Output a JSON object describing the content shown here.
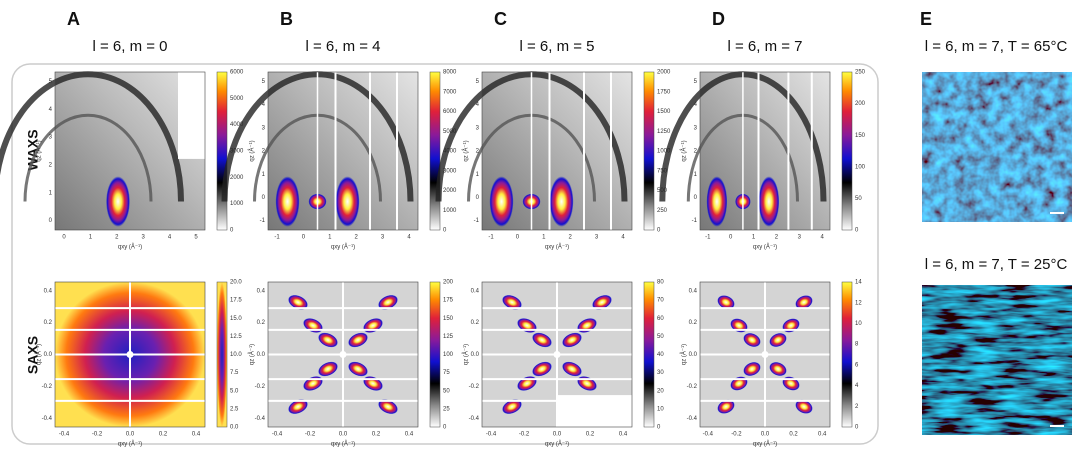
{
  "row_labels": [
    "WAXS",
    "SAXS"
  ],
  "axis_labels": {
    "waxs_x": "qxy (Å⁻¹)",
    "waxs_y": "qz (Å⁻¹)",
    "saxs_x": "qxy (Å⁻¹)",
    "saxs_y": "qz (Å⁻¹)"
  },
  "panels": [
    {
      "letter": "A",
      "title": "l = 6, m = 0",
      "waxs": {
        "xticks": [
          "0",
          "1",
          "2",
          "3",
          "4",
          "5"
        ],
        "yticks": [
          "5",
          "4",
          "3",
          "2",
          "1",
          "0"
        ],
        "colorbar": [
          "6000",
          "5000",
          "4000",
          "3000",
          "2000",
          "1000",
          "0"
        ]
      },
      "saxs": {
        "xticks": [
          "-0.4",
          "-0.2",
          "0.0",
          "0.2",
          "0.4"
        ],
        "yticks": [
          "0.4",
          "0.2",
          "0.0",
          "-0.2",
          "-0.4"
        ],
        "colorbar": [
          "20.0",
          "17.5",
          "15.0",
          "12.5",
          "10.0",
          "7.5",
          "5.0",
          "2.5",
          "0.0"
        ]
      }
    },
    {
      "letter": "B",
      "title": "l = 6, m = 4",
      "waxs": {
        "xticks": [
          "-1",
          "0",
          "1",
          "2",
          "3",
          "4"
        ],
        "yticks": [
          "5",
          "4",
          "3",
          "2",
          "1",
          "0",
          "-1"
        ],
        "colorbar": [
          "8000",
          "7000",
          "6000",
          "5000",
          "4000",
          "3000",
          "2000",
          "1000",
          "0"
        ]
      },
      "saxs": {
        "xticks": [
          "-0.4",
          "-0.2",
          "0.0",
          "0.2",
          "0.4"
        ],
        "yticks": [
          "0.4",
          "0.2",
          "0.0",
          "-0.2",
          "-0.4"
        ],
        "colorbar": [
          "200",
          "175",
          "150",
          "125",
          "100",
          "75",
          "50",
          "25",
          "0"
        ]
      }
    },
    {
      "letter": "C",
      "title": "l = 6, m = 5",
      "waxs": {
        "xticks": [
          "-1",
          "0",
          "1",
          "2",
          "3",
          "4"
        ],
        "yticks": [
          "5",
          "4",
          "3",
          "2",
          "1",
          "0",
          "-1"
        ],
        "colorbar": [
          "2000",
          "1750",
          "1500",
          "1250",
          "1000",
          "750",
          "500",
          "250",
          "0"
        ]
      },
      "saxs": {
        "xticks": [
          "-0.4",
          "-0.2",
          "0.0",
          "0.2",
          "0.4"
        ],
        "yticks": [
          "0.4",
          "0.2",
          "0.0",
          "-0.2",
          "-0.4"
        ],
        "colorbar": [
          "80",
          "70",
          "60",
          "50",
          "40",
          "30",
          "20",
          "10",
          "0"
        ]
      }
    },
    {
      "letter": "D",
      "title": "l = 6, m = 7",
      "waxs": {
        "xticks": [
          "-1",
          "0",
          "1",
          "2",
          "3",
          "4"
        ],
        "yticks": [
          "5",
          "4",
          "3",
          "2",
          "1",
          "0",
          "-1"
        ],
        "colorbar": [
          "250",
          "200",
          "150",
          "100",
          "50",
          "0"
        ]
      },
      "saxs": {
        "xticks": [
          "-0.4",
          "-0.2",
          "0.0",
          "0.2",
          "0.4"
        ],
        "yticks": [
          "0.4",
          "0.2",
          "0.0",
          "-0.2",
          "-0.4"
        ],
        "colorbar": [
          "14",
          "12",
          "10",
          "8",
          "6",
          "4",
          "2",
          "0"
        ]
      }
    }
  ],
  "panel_e": {
    "letter": "E",
    "titles": [
      "l = 6, m = 7, T = 65°C",
      "l = 6, m = 7, T = 25°C"
    ]
  }
}
